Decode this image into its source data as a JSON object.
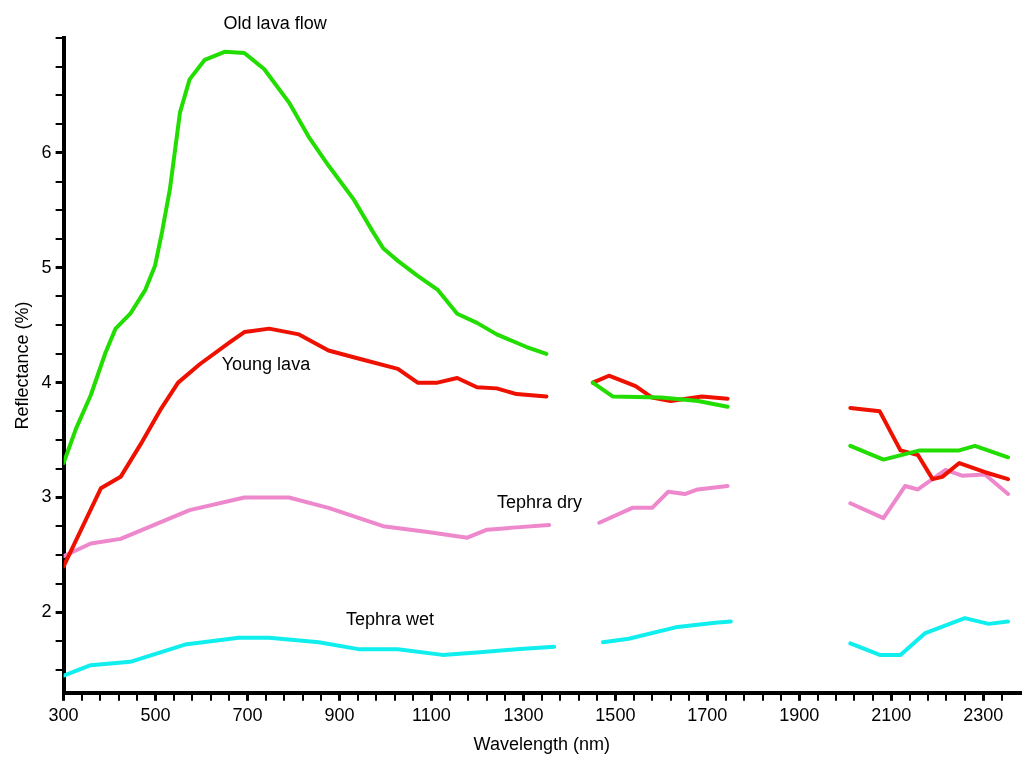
{
  "chart_data": {
    "type": "line",
    "xlabel": "Wavelength (nm)",
    "ylabel": "Reflectance (%)",
    "xlim": [
      300,
      2380
    ],
    "ylim": [
      1.3,
      7.0
    ],
    "xticks": [
      300,
      {
        "value": 340,
        "label": null
      },
      {
        "value": 380,
        "label": null
      },
      {
        "value": 420,
        "label": null
      },
      {
        "value": 460,
        "label": null
      },
      500,
      {
        "value": 540,
        "label": null
      },
      {
        "value": 580,
        "label": null
      },
      {
        "value": 620,
        "label": null
      },
      {
        "value": 660,
        "label": null
      },
      700,
      {
        "value": 740,
        "label": null
      },
      {
        "value": 780,
        "label": null
      },
      {
        "value": 820,
        "label": null
      },
      {
        "value": 860,
        "label": null
      },
      900,
      {
        "value": 940,
        "label": null
      },
      {
        "value": 980,
        "label": null
      },
      {
        "value": 1020,
        "label": null
      },
      {
        "value": 1060,
        "label": null
      },
      1100,
      {
        "value": 1140,
        "label": null
      },
      {
        "value": 1180,
        "label": null
      },
      {
        "value": 1220,
        "label": null
      },
      {
        "value": 1260,
        "label": null
      },
      1300,
      {
        "value": 1340,
        "label": null
      },
      {
        "value": 1380,
        "label": null
      },
      {
        "value": 1420,
        "label": null
      },
      {
        "value": 1460,
        "label": null
      },
      1500,
      {
        "value": 1540,
        "label": null
      },
      {
        "value": 1580,
        "label": null
      },
      {
        "value": 1620,
        "label": null
      },
      {
        "value": 1660,
        "label": null
      },
      1700,
      {
        "value": 1740,
        "label": null
      },
      {
        "value": 1780,
        "label": null
      },
      {
        "value": 1820,
        "label": null
      },
      {
        "value": 1860,
        "label": null
      },
      1900,
      {
        "value": 1940,
        "label": null
      },
      {
        "value": 1980,
        "label": null
      },
      {
        "value": 2020,
        "label": null
      },
      {
        "value": 2060,
        "label": null
      },
      2100,
      {
        "value": 2140,
        "label": null
      },
      {
        "value": 2180,
        "label": null
      },
      {
        "value": 2220,
        "label": null
      },
      {
        "value": 2260,
        "label": null
      },
      2300,
      {
        "value": 2340,
        "label": null
      }
    ],
    "yticks": [
      {
        "value": 1.5,
        "label": null
      },
      {
        "value": 1.75,
        "label": null
      },
      2,
      {
        "value": 2.25,
        "label": null
      },
      {
        "value": 2.5,
        "label": null
      },
      {
        "value": 2.75,
        "label": null
      },
      3,
      {
        "value": 3.25,
        "label": null
      },
      {
        "value": 3.5,
        "label": null
      },
      {
        "value": 3.75,
        "label": null
      },
      4,
      {
        "value": 4.25,
        "label": null
      },
      {
        "value": 4.5,
        "label": null
      },
      {
        "value": 4.75,
        "label": null
      },
      5,
      {
        "value": 5.25,
        "label": null
      },
      {
        "value": 5.5,
        "label": null
      },
      {
        "value": 5.75,
        "label": null
      },
      6,
      {
        "value": 6.25,
        "label": null
      },
      {
        "value": 6.5,
        "label": null
      },
      {
        "value": 6.75,
        "label": null
      },
      {
        "value": 7.0,
        "label": null
      }
    ],
    "grid": false,
    "legend": false,
    "marker": "none",
    "line_style": "solid",
    "series": [
      {
        "name": "Old lava flow",
        "color": "#22dd00",
        "x": [
          300,
          327,
          359,
          391,
          413,
          445,
          478,
          499,
          514,
          531,
          553,
          574,
          607,
          650,
          693,
          736,
          790,
          833,
          876,
          930,
          973,
          995,
          1027,
          1070,
          1113,
          1156,
          1199,
          1242,
          1307,
          1350,
          1400,
          1451,
          1494,
          1600,
          1680,
          1744,
          1880,
          2011,
          2083,
          2162,
          2248,
          2282,
          2354
        ],
        "values": [
          3.3,
          3.6,
          3.89,
          4.26,
          4.47,
          4.6,
          4.81,
          5.02,
          5.31,
          5.68,
          6.35,
          6.64,
          6.81,
          6.88,
          6.87,
          6.73,
          6.44,
          6.14,
          5.89,
          5.6,
          5.31,
          5.17,
          5.06,
          4.93,
          4.81,
          4.6,
          4.52,
          4.42,
          4.31,
          4.25,
          null,
          4.0,
          3.88,
          3.87,
          3.84,
          3.79,
          null,
          3.45,
          3.33,
          3.41,
          3.41,
          3.45,
          3.35
        ]
      },
      {
        "name": "Young lava",
        "color": "#ee1100",
        "x": [
          300,
          381,
          424,
          467,
          510,
          549,
          596,
          661,
          693,
          747,
          812,
          876,
          941,
          1027,
          1070,
          1113,
          1156,
          1199,
          1242,
          1285,
          1350,
          1400,
          1451,
          1486,
          1544,
          1580,
          1620,
          1688,
          1744,
          1880,
          2011,
          2075,
          2120,
          2158,
          2190,
          2211,
          2248,
          2304,
          2354
        ],
        "values": [
          2.4,
          3.08,
          3.18,
          3.46,
          3.76,
          4.0,
          4.16,
          4.35,
          4.44,
          4.47,
          4.42,
          4.28,
          4.21,
          4.12,
          4.0,
          4.0,
          4.04,
          3.96,
          3.95,
          3.9,
          3.88,
          null,
          4.0,
          4.06,
          3.97,
          3.87,
          3.84,
          3.88,
          3.86,
          null,
          3.78,
          3.75,
          3.41,
          3.37,
          3.16,
          3.18,
          3.3,
          3.22,
          3.16
        ]
      },
      {
        "name": "Tephra dry",
        "color": "#ee88cc",
        "x": [
          300,
          359,
          424,
          574,
          693,
          790,
          876,
          995,
          1092,
          1178,
          1221,
          1285,
          1356,
          1410,
          1465,
          1537,
          1580,
          1615,
          1651,
          1679,
          1744,
          1880,
          2011,
          2083,
          2130,
          2158,
          2218,
          2254,
          2304,
          2354
        ],
        "values": [
          2.49,
          2.6,
          2.64,
          2.89,
          3.0,
          3.0,
          2.91,
          2.75,
          2.7,
          2.65,
          2.72,
          2.74,
          2.76,
          null,
          2.78,
          2.91,
          2.91,
          3.05,
          3.03,
          3.07,
          3.1,
          null,
          2.95,
          2.82,
          3.1,
          3.07,
          3.24,
          3.19,
          3.2,
          3.03
        ]
      },
      {
        "name": "Tephra wet",
        "color": "#11eeee",
        "x": [
          300,
          359,
          445,
          564,
          681,
          747,
          855,
          941,
          1027,
          1124,
          1199,
          1285,
          1367,
          1420,
          1473,
          1529,
          1631,
          1717,
          1751,
          1880,
          2011,
          2075,
          2120,
          2174,
          2260,
          2312,
          2354
        ],
        "values": [
          1.45,
          1.54,
          1.57,
          1.72,
          1.78,
          1.78,
          1.74,
          1.68,
          1.68,
          1.63,
          1.65,
          1.68,
          1.7,
          null,
          1.74,
          1.77,
          1.87,
          1.91,
          1.92,
          null,
          1.73,
          1.63,
          1.63,
          1.82,
          1.95,
          1.9,
          1.92
        ]
      }
    ]
  }
}
